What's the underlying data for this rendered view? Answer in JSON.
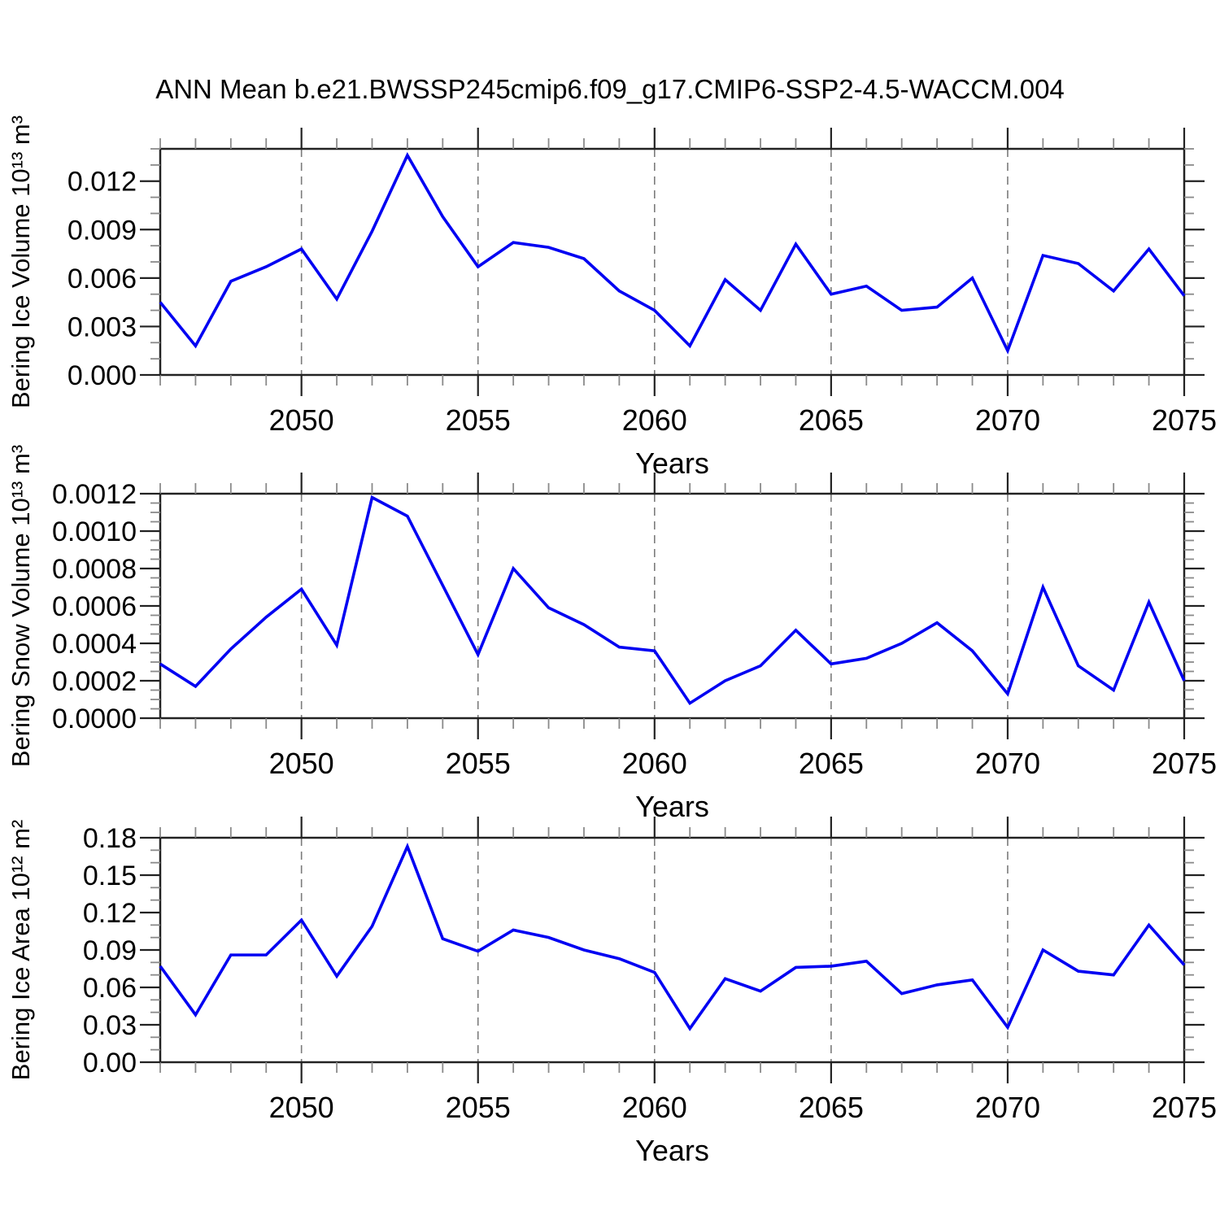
{
  "title": "ANN Mean b.e21.BWSSP245cmip6.f09_g17.CMIP6-SSP2-4.5-WACCM.004",
  "colors": {
    "line": "#0000f2",
    "grid": "#7b7b7b",
    "frame": "#222222",
    "tick_major": "#222222",
    "tick_minor": "#8a8a8a",
    "text": "#000000",
    "background": "#ffffff"
  },
  "x_axis": {
    "label": "Years",
    "range": [
      2046,
      2075
    ],
    "years": [
      2046,
      2047,
      2048,
      2049,
      2050,
      2051,
      2052,
      2053,
      2054,
      2055,
      2056,
      2057,
      2058,
      2059,
      2060,
      2061,
      2062,
      2063,
      2064,
      2065,
      2066,
      2067,
      2068,
      2069,
      2070,
      2071,
      2072,
      2073,
      2074,
      2075
    ],
    "major_ticks": [
      2050,
      2055,
      2060,
      2065,
      2070,
      2075
    ],
    "tick_labels": [
      "2050",
      "2055",
      "2060",
      "2065",
      "2070",
      "2075"
    ],
    "major_every": 5,
    "minor_step": 1,
    "gridlines": [
      2050,
      2055,
      2060,
      2065,
      2070
    ]
  },
  "chart_data": [
    {
      "type": "line",
      "name": "bering-ice-volume",
      "ylabel": "Bering Ice Volume 10¹³ m³",
      "y_max": 0.014,
      "y_major": 0.003,
      "y_minor": 0.001,
      "y_tick_labels": [
        "0.000",
        "0.003",
        "0.006",
        "0.009",
        "0.012"
      ],
      "values": [
        0.0045,
        0.0018,
        0.0058,
        0.0067,
        0.0078,
        0.0047,
        0.0089,
        0.0136,
        0.0098,
        0.0067,
        0.0082,
        0.0079,
        0.0072,
        0.0052,
        0.004,
        0.0018,
        0.0059,
        0.004,
        0.0081,
        0.005,
        0.0055,
        0.004,
        0.0042,
        0.006,
        0.0015,
        0.0074,
        0.0069,
        0.0052,
        0.0078,
        0.0049
      ]
    },
    {
      "type": "line",
      "name": "bering-snow-volume",
      "ylabel": "Bering Snow Volume 10¹³ m³",
      "y_max": 0.0012,
      "y_major": 0.0002,
      "y_minor": 5e-05,
      "y_tick_labels": [
        "0.0000",
        "0.0002",
        "0.0004",
        "0.0006",
        "0.0008",
        "0.0010",
        "0.0012"
      ],
      "values": [
        0.00029,
        0.00017,
        0.00037,
        0.00054,
        0.00069,
        0.00039,
        0.00118,
        0.00108,
        0.00071,
        0.00034,
        0.0008,
        0.00059,
        0.0005,
        0.00038,
        0.00036,
        8e-05,
        0.0002,
        0.00028,
        0.00047,
        0.00029,
        0.00032,
        0.0004,
        0.00051,
        0.00036,
        0.00013,
        0.0007,
        0.00028,
        0.00015,
        0.00062,
        0.0002
      ]
    },
    {
      "type": "line",
      "name": "bering-ice-area",
      "ylabel": "Bering Ice Area 10¹² m²",
      "y_max": 0.18,
      "y_major": 0.03,
      "y_minor": 0.01,
      "y_tick_labels": [
        "0.00",
        "0.03",
        "0.06",
        "0.09",
        "0.12",
        "0.15",
        "0.18"
      ],
      "values": [
        0.077,
        0.038,
        0.086,
        0.086,
        0.114,
        0.069,
        0.109,
        0.173,
        0.099,
        0.089,
        0.106,
        0.1,
        0.09,
        0.083,
        0.072,
        0.027,
        0.067,
        0.057,
        0.076,
        0.077,
        0.081,
        0.055,
        0.062,
        0.066,
        0.028,
        0.09,
        0.073,
        0.07,
        0.11,
        0.078
      ]
    }
  ]
}
